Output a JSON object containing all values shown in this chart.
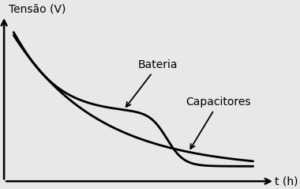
{
  "ylabel": "Tensão (V)",
  "xlabel": "t (h)",
  "background_color": "#e8e8e8",
  "line_color": "#000000",
  "axes_color": "#000000",
  "font_size_ylabel": 10,
  "font_size_xlabel": 10,
  "font_size_annotations": 10,
  "bateria_label": "Bateria",
  "capacitores_label": "Capacitores",
  "figsize": [
    3.8,
    2.39
  ],
  "dpi": 100
}
